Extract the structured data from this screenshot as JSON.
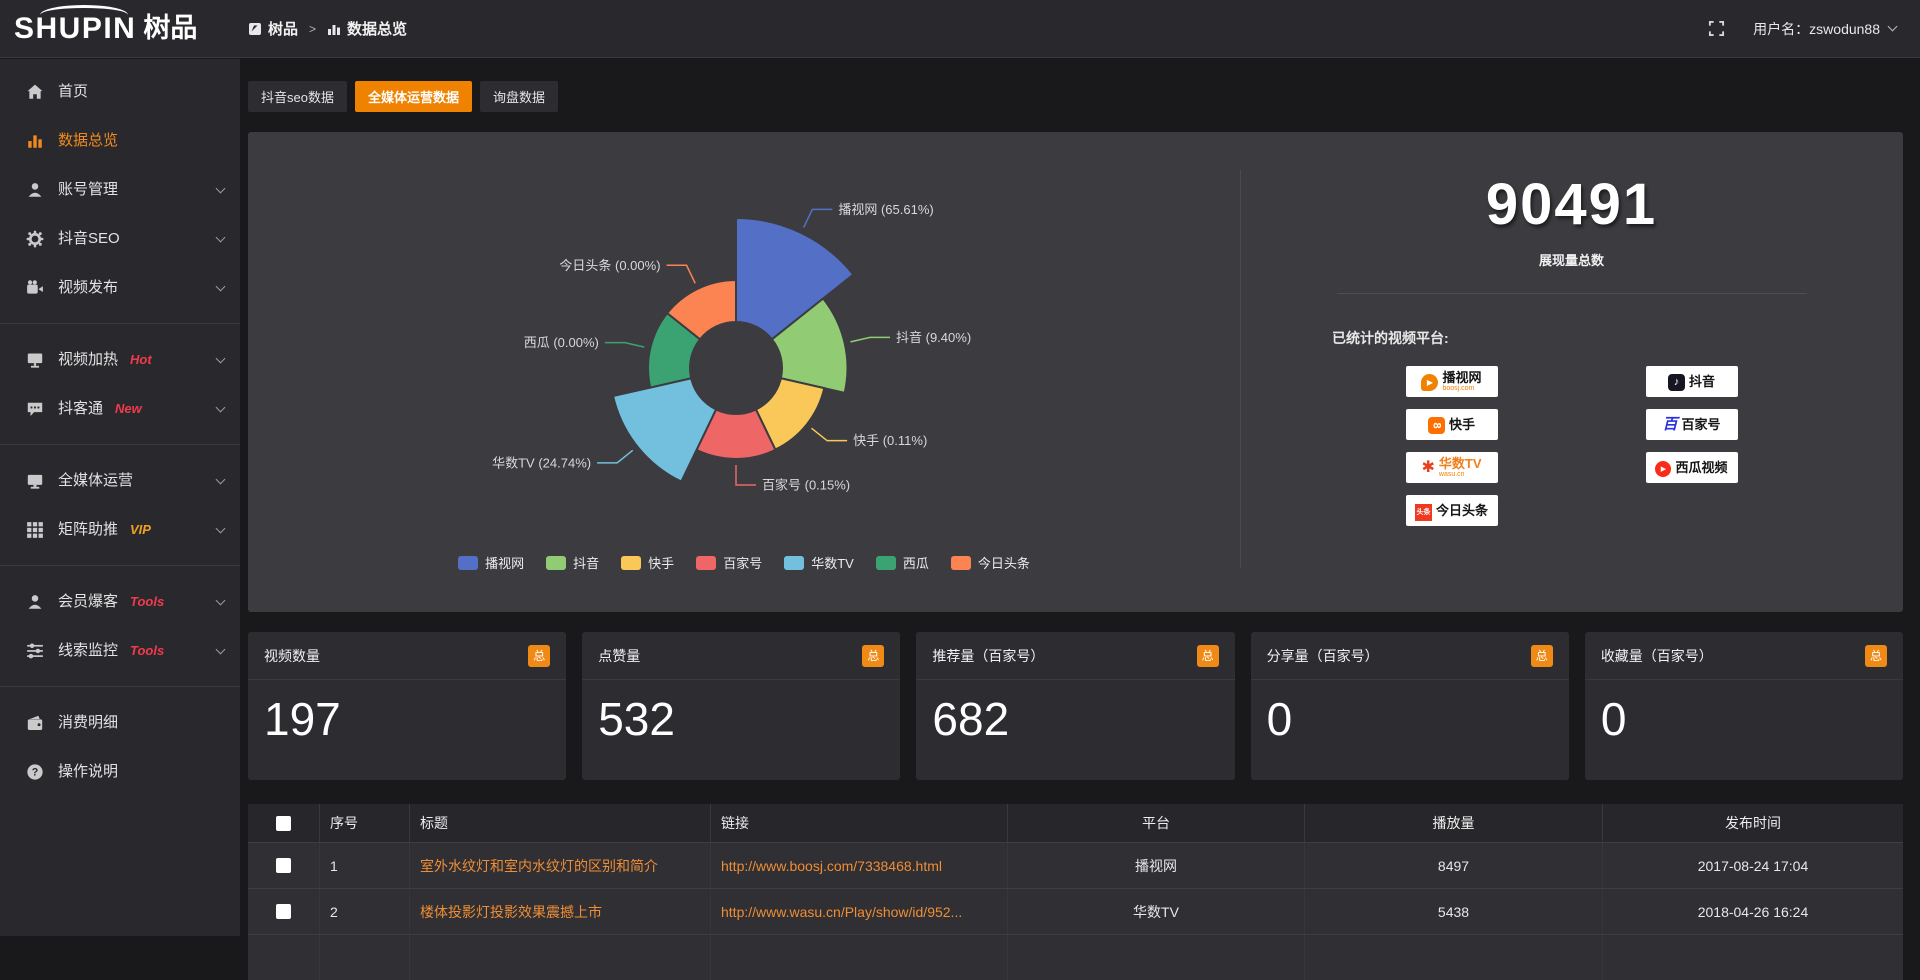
{
  "header": {
    "logo_text": "SHUPIN",
    "logo_cn": "树品",
    "breadcrumb": {
      "root": "树品",
      "separator": ">",
      "current": "数据总览"
    },
    "username_label": "用户名：zswodun88"
  },
  "sidebar": {
    "items": [
      {
        "label": "首页",
        "icon": "home-icon",
        "badge": "",
        "badge_color": "",
        "chevron": false,
        "active": false,
        "divider_after": false
      },
      {
        "label": "数据总览",
        "icon": "bar-chart-icon",
        "badge": "",
        "badge_color": "",
        "chevron": false,
        "active": true,
        "divider_after": false
      },
      {
        "label": "账号管理",
        "icon": "user-icon",
        "badge": "",
        "badge_color": "",
        "chevron": true,
        "active": false,
        "divider_after": false
      },
      {
        "label": "抖音SEO",
        "icon": "gear-icon",
        "badge": "",
        "badge_color": "",
        "chevron": true,
        "active": false,
        "divider_after": false
      },
      {
        "label": "视频发布",
        "icon": "video-camera-icon",
        "badge": "",
        "badge_color": "",
        "chevron": true,
        "active": false,
        "divider_after": true
      },
      {
        "label": "视频加热",
        "icon": "screen-icon",
        "badge": "Hot",
        "badge_color": "#f23a4c",
        "chevron": true,
        "active": false,
        "divider_after": false
      },
      {
        "label": "抖客通",
        "icon": "comment-icon",
        "badge": "New",
        "badge_color": "#f23a4c",
        "chevron": true,
        "active": false,
        "divider_after": true
      },
      {
        "label": "全媒体运营",
        "icon": "monitor-icon",
        "badge": "",
        "badge_color": "",
        "chevron": true,
        "active": false,
        "divider_after": false
      },
      {
        "label": "矩阵助推",
        "icon": "grid-icon",
        "badge": "VIP",
        "badge_color": "#f0a21d",
        "chevron": true,
        "active": false,
        "divider_after": true
      },
      {
        "label": "会员爆客",
        "icon": "member-icon",
        "badge": "Tools",
        "badge_color": "#f23a4c",
        "chevron": true,
        "active": false,
        "divider_after": false
      },
      {
        "label": "线索监控",
        "icon": "sliders-icon",
        "badge": "Tools",
        "badge_color": "#f23a4c",
        "chevron": true,
        "active": false,
        "divider_after": true
      },
      {
        "label": "消费明细",
        "icon": "wallet-icon",
        "badge": "",
        "badge_color": "",
        "chevron": false,
        "active": false,
        "divider_after": false
      },
      {
        "label": "操作说明",
        "icon": "question-icon",
        "badge": "",
        "badge_color": "",
        "chevron": false,
        "active": false,
        "divider_after": false
      }
    ]
  },
  "tabs": [
    {
      "label": "抖音seo数据",
      "active": false
    },
    {
      "label": "全媒体运营数据",
      "active": true
    },
    {
      "label": "询盘数据",
      "active": false
    }
  ],
  "chart_data": {
    "type": "pie",
    "subtype": "nightingale-rose",
    "legend_position": "bottom",
    "label_format": "{name} ({percent}%)",
    "items": [
      {
        "name": "播视网",
        "percent": 65.61,
        "color": "#5470c6"
      },
      {
        "name": "抖音",
        "percent": 9.4,
        "color": "#91cc75"
      },
      {
        "name": "快手",
        "percent": 0.11,
        "color": "#fac858"
      },
      {
        "name": "百家号",
        "percent": 0.15,
        "color": "#ee6666"
      },
      {
        "name": "华数TV",
        "percent": 24.74,
        "color": "#73c0de"
      },
      {
        "name": "西瓜",
        "percent": 0.0,
        "color": "#3ba272"
      },
      {
        "name": "今日头条",
        "percent": 0.0,
        "color": "#fc8452"
      }
    ]
  },
  "summary": {
    "total_value": "90491",
    "total_label": "展现量总数",
    "platforms_label": "已统计的视频平台:",
    "platforms": [
      {
        "name": "播视网",
        "sub": "boosj.com",
        "icon": "boosj-play-icon",
        "brand_color": "#f08200",
        "name_color": "#151515"
      },
      {
        "name": "快手",
        "sub": "",
        "icon": "kuaishou-icon",
        "brand_color": "#ff6e00",
        "name_color": "#151515"
      },
      {
        "name": "华数TV",
        "sub": "wasu.cn",
        "icon": "wasu-burst-icon",
        "brand_color": "#e8401f",
        "name_color": "#f07f1e"
      },
      {
        "name": "今日头条",
        "sub": "",
        "icon": "toutiao-icon",
        "brand_color": "#ef3921",
        "name_color": "#151515"
      },
      {
        "name": "抖音",
        "sub": "",
        "icon": "douyin-note-icon",
        "brand_color": "#161622",
        "name_color": "#151515"
      },
      {
        "name": "百家号",
        "sub": "",
        "icon": "baijiahao-icon",
        "brand_color": "#2932e1",
        "name_color": "#151515"
      },
      {
        "name": "西瓜视频",
        "sub": "",
        "icon": "xigua-play-icon",
        "brand_color": "#fa2c19",
        "name_color": "#151515"
      }
    ]
  },
  "stat_cards": [
    {
      "title": "视频数量",
      "badge": "总",
      "value": "197"
    },
    {
      "title": "点赞量",
      "badge": "总",
      "value": "532"
    },
    {
      "title": "推荐量（百家号）",
      "badge": "总",
      "value": "682"
    },
    {
      "title": "分享量（百家号）",
      "badge": "总",
      "value": "0"
    },
    {
      "title": "收藏量（百家号）",
      "badge": "总",
      "value": "0"
    }
  ],
  "table": {
    "columns": [
      "序号",
      "标题",
      "链接",
      "平台",
      "播放量",
      "发布时间"
    ],
    "rows": [
      {
        "no": "1",
        "title": "室外水纹灯和室内水纹灯的区别和简介",
        "link": "http://www.boosj.com/7338468.html",
        "platform": "播视网",
        "plays": "8497",
        "time": "2017-08-24 17:04"
      },
      {
        "no": "2",
        "title": "楼体投影灯投影效果震撼上市",
        "link": "http://www.wasu.cn/Play/show/id/952...",
        "platform": "华数TV",
        "plays": "5438",
        "time": "2018-04-26 16:24"
      }
    ]
  }
}
